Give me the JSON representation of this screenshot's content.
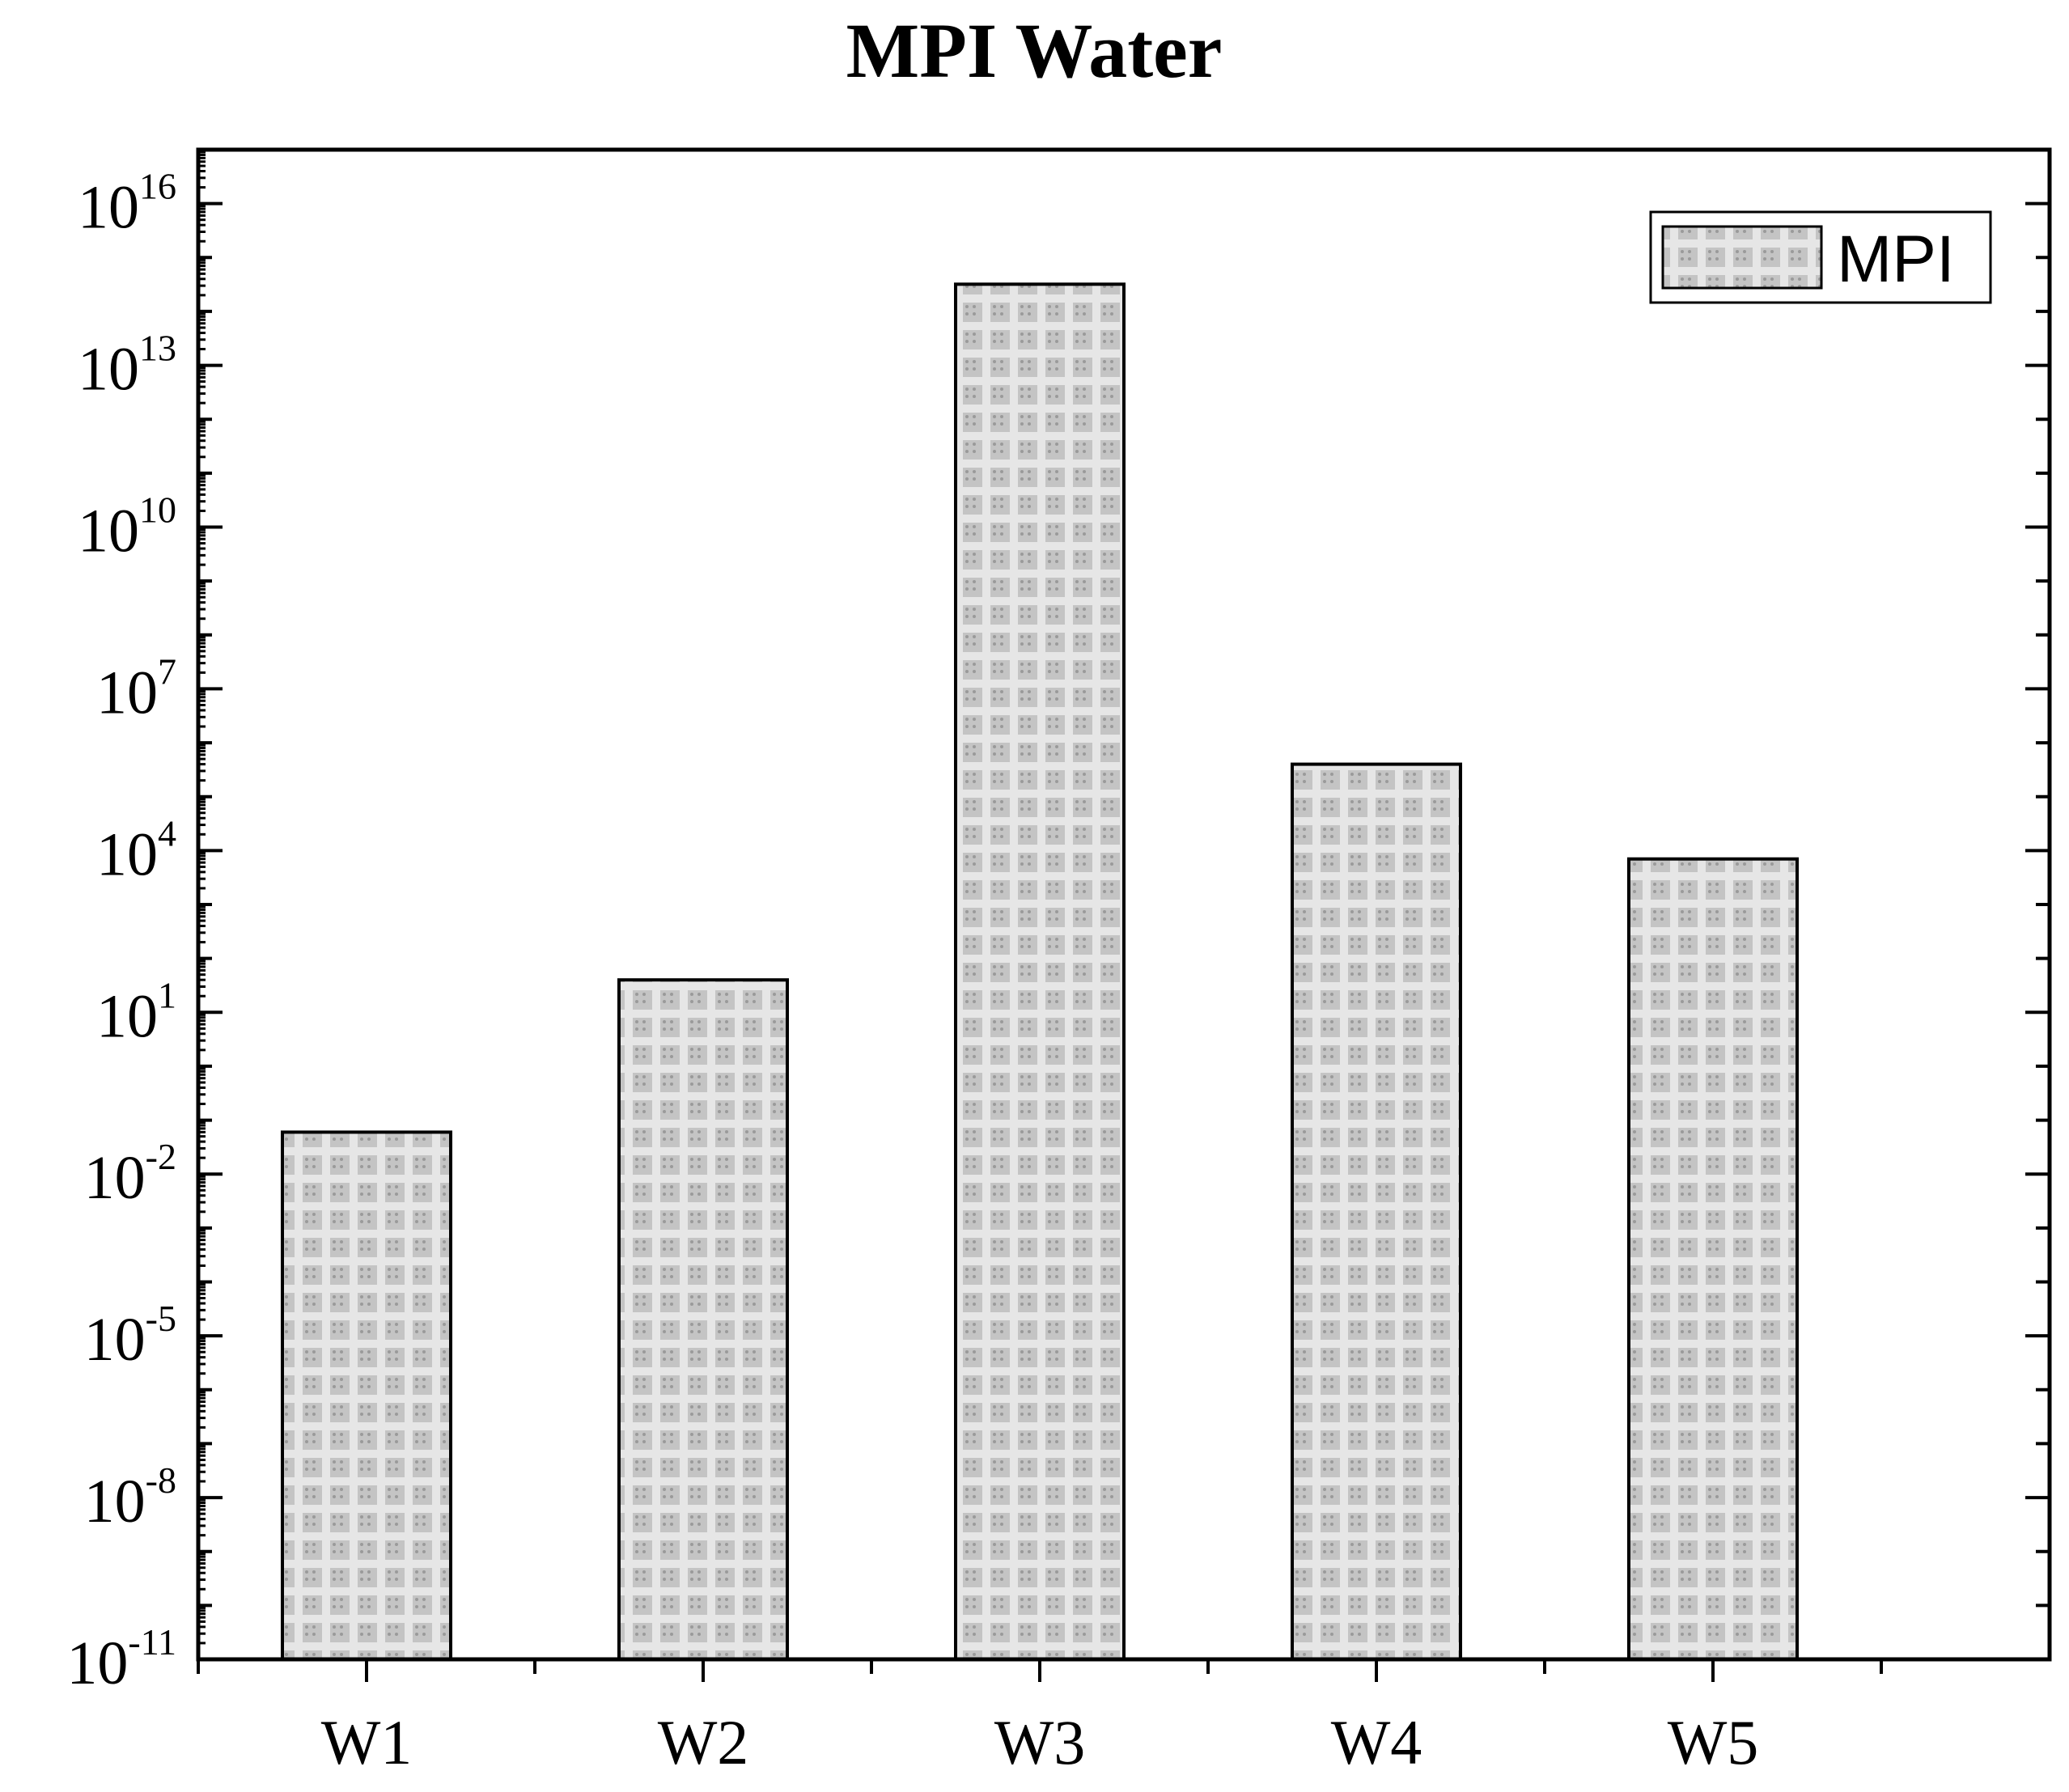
{
  "chart_data": {
    "type": "bar",
    "title": "MPI Water",
    "xlabel": "",
    "ylabel": "",
    "yscale": "log",
    "ylim_exponents": [
      -11,
      17
    ],
    "y_tick_exponents": [
      -11,
      -8,
      -5,
      -2,
      1,
      4,
      7,
      10,
      13,
      16
    ],
    "categories": [
      "W1",
      "W2",
      "W3",
      "W4",
      "W5"
    ],
    "series": [
      {
        "name": "MPI",
        "values": [
          0.06,
          40,
          320000000000000.0,
          400000,
          7000
        ]
      }
    ],
    "legend": {
      "position": "top-right",
      "entries": [
        "MPI"
      ]
    },
    "grid": false,
    "colors": {
      "bar_base": "#c8c8c8",
      "bar_stripe": "#e4e4e4",
      "bar_dark": "#9e9e9e",
      "axis": "#000000"
    }
  }
}
